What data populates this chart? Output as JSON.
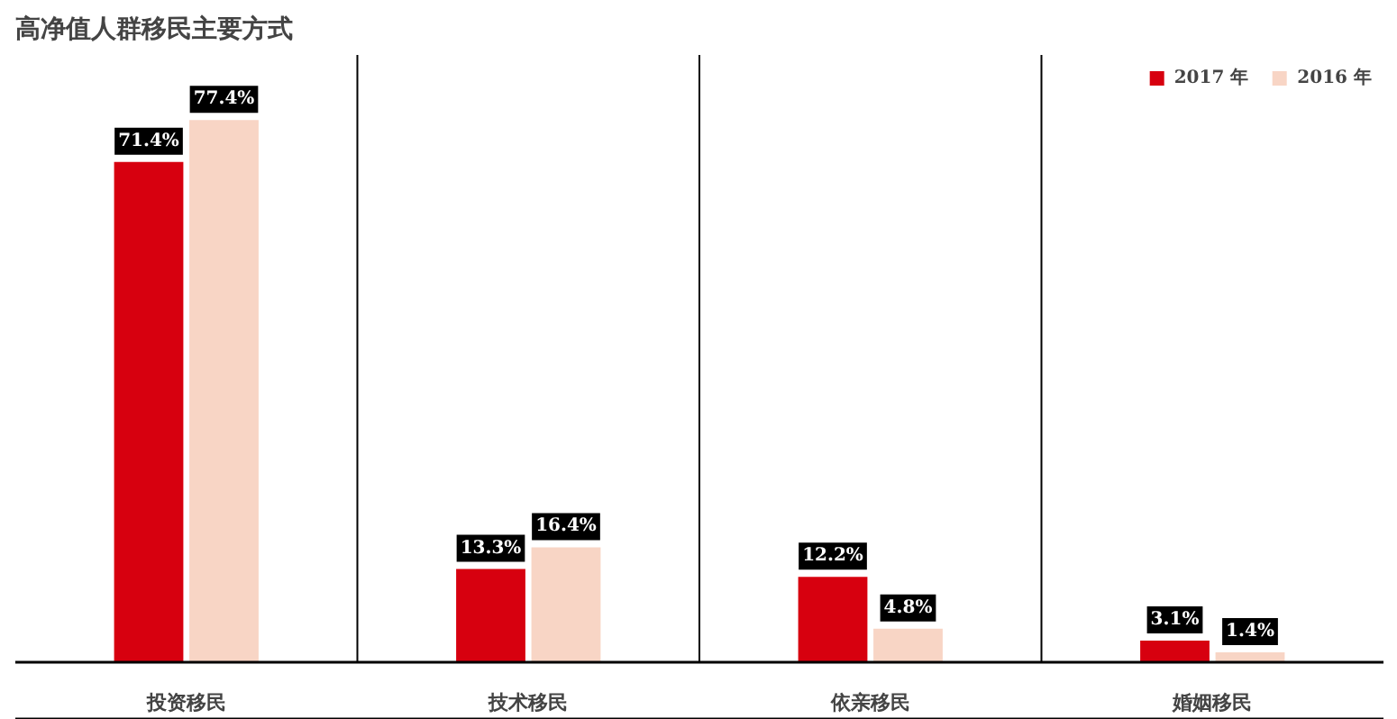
{
  "chart_data": {
    "type": "bar",
    "title": "高净值人群移民主要方式",
    "categories": [
      "投资移民",
      "技术移民",
      "依亲移民",
      "婚姻移民"
    ],
    "series": [
      {
        "name": "2017 年",
        "color": "#d7000f",
        "values": [
          71.4,
          13.3,
          12.2,
          3.1
        ],
        "value_labels": [
          "71.4%",
          "13.3%",
          "12.2%",
          "3.1%"
        ]
      },
      {
        "name": "2016 年",
        "color": "#f8d5c5",
        "values": [
          77.4,
          16.4,
          4.8,
          1.4
        ],
        "value_labels": [
          "77.4%",
          "16.4%",
          "4.8%",
          "1.4%"
        ]
      }
    ],
    "legend": "top right",
    "grid": false
  }
}
